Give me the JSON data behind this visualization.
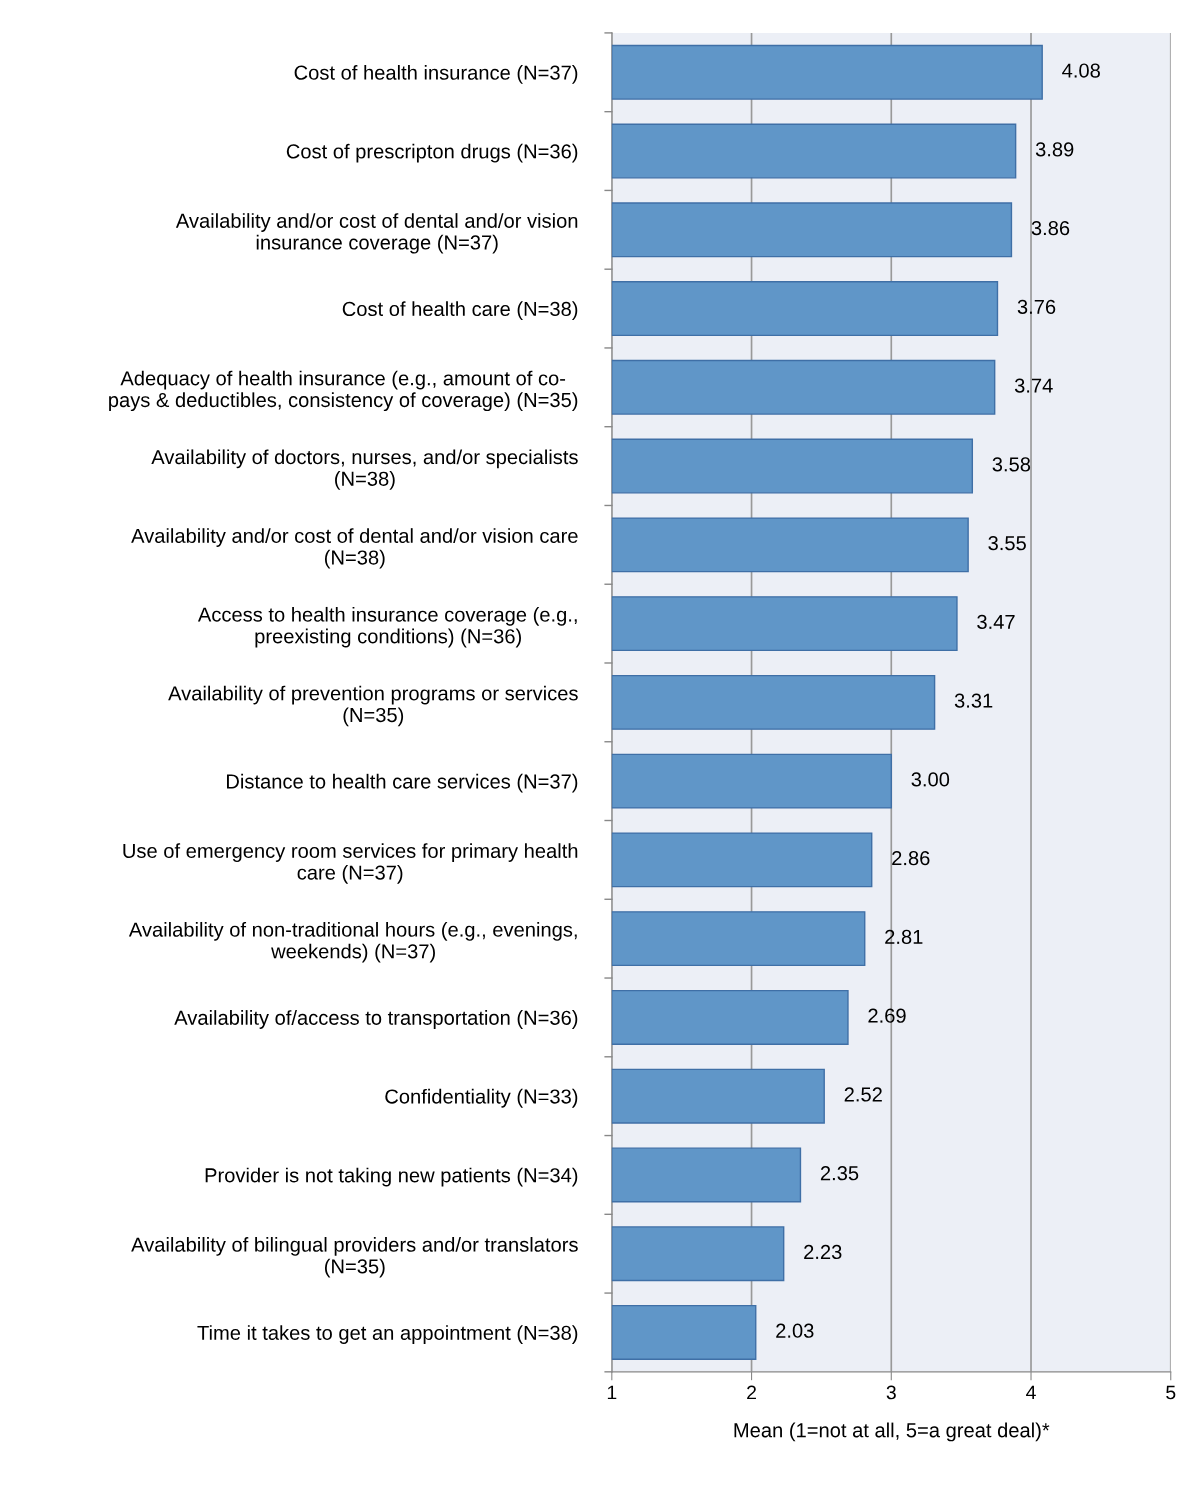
{
  "chart_data": {
    "type": "bar",
    "orientation": "horizontal",
    "xlabel": "Mean (1=not at all, 5=a great deal)*",
    "categories": [
      "Cost of health insurance (N=37)",
      "Cost of prescripton drugs (N=36)",
      "Availability and/or cost of dental and/or vision\ninsurance coverage (N=37)",
      "Cost of health care (N=38)",
      "Adequacy of health insurance (e.g., amount of co-\npays & deductibles, consistency of coverage) (N=35)",
      "Availability of doctors, nurses, and/or specialists\n(N=38)",
      "Availability and/or cost of dental and/or vision care\n(N=38)",
      "Access to health insurance coverage (e.g.,\npreexisting conditions) (N=36)",
      "Availability of prevention programs or services\n(N=35)",
      "Distance to health care services (N=37)",
      "Use of emergency room services for primary health\ncare (N=37)",
      "Availability of non-traditional hours (e.g., evenings,\nweekends) (N=37)",
      "Availability of/access to transportation (N=36)",
      "Confidentiality (N=33)",
      "Provider is not taking new patients (N=34)",
      "Availability of bilingual providers and/or translators\n(N=35)",
      "Time it takes to get an appointment (N=38)"
    ],
    "values": [
      4.08,
      3.89,
      3.86,
      3.76,
      3.74,
      3.58,
      3.55,
      3.47,
      3.31,
      3.0,
      2.86,
      2.81,
      2.69,
      2.52,
      2.35,
      2.23,
      2.03
    ],
    "value_labels": [
      "4.08",
      "3.89",
      "3.86",
      "3.76",
      "3.74",
      "3.58",
      "3.55",
      "3.47",
      "3.31",
      "3.00",
      "2.86",
      "2.81",
      "2.69",
      "2.52",
      "2.35",
      "2.23",
      "2.03"
    ],
    "color": "#6096c8",
    "xlim": [
      1,
      5
    ],
    "xticks": [
      1,
      2,
      3,
      4,
      5
    ],
    "grid": "x",
    "legend": false
  }
}
